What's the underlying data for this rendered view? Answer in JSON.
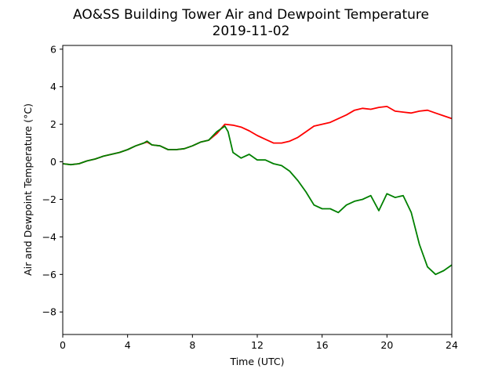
{
  "chart_data": {
    "type": "line",
    "title": "AO&SS Building Tower Air and Dewpoint Temperature",
    "subtitle": "2019-11-02",
    "xlabel": "Time (UTC)",
    "ylabel": "Air and Dewpoint Temperature (°C)",
    "xlim": [
      0,
      24
    ],
    "ylim": [
      -9.2,
      6.2
    ],
    "xticks": [
      0,
      4,
      8,
      12,
      16,
      20,
      24
    ],
    "yticks": [
      -8,
      -6,
      -4,
      -2,
      0,
      2,
      4,
      6
    ],
    "tick_labels_y": [
      "−8",
      "−6",
      "−4",
      "−2",
      "0",
      "2",
      "4",
      "6"
    ],
    "grid": false,
    "series": [
      {
        "color": "#ff0000",
        "x": [
          0,
          0.5,
          1,
          1.5,
          2,
          2.5,
          3,
          3.5,
          4,
          4.5,
          5,
          5.2,
          5.5,
          6,
          6.5,
          7,
          7.5,
          8,
          8.5,
          9,
          9.5,
          10,
          10.5,
          11,
          11.5,
          12,
          12.5,
          13,
          13.5,
          14,
          14.5,
          15,
          15.5,
          16,
          16.5,
          17,
          17.5,
          18,
          18.5,
          19,
          19.5,
          20,
          20.5,
          21,
          21.5,
          22,
          22.5,
          23,
          23.5,
          24
        ],
        "y": [
          -0.1,
          -0.15,
          -0.1,
          0.05,
          0.15,
          0.3,
          0.4,
          0.5,
          0.65,
          0.85,
          1.0,
          1.05,
          0.9,
          0.85,
          0.65,
          0.65,
          0.7,
          0.85,
          1.05,
          1.15,
          1.5,
          2.0,
          1.95,
          1.85,
          1.65,
          1.4,
          1.2,
          1.0,
          1.0,
          1.1,
          1.3,
          1.6,
          1.9,
          2.0,
          2.1,
          2.3,
          2.5,
          2.75,
          2.85,
          2.8,
          2.9,
          2.95,
          2.7,
          2.65,
          2.6,
          2.7,
          2.75,
          2.6,
          2.45,
          2.3
        ]
      },
      {
        "color": "#008000",
        "x": [
          0,
          0.5,
          1,
          1.5,
          2,
          2.5,
          3,
          3.5,
          4,
          4.5,
          5,
          5.2,
          5.5,
          6,
          6.5,
          7,
          7.5,
          8,
          8.5,
          9,
          9.5,
          10,
          10.2,
          10.5,
          11,
          11.5,
          12,
          12.5,
          13,
          13.5,
          14,
          14.5,
          15,
          15.5,
          16,
          16.5,
          17,
          17.5,
          18,
          18.5,
          19,
          19.5,
          20,
          20.5,
          21,
          21.5,
          22,
          22.5,
          23,
          23.5,
          24
        ],
        "y": [
          -0.1,
          -0.15,
          -0.1,
          0.05,
          0.15,
          0.3,
          0.4,
          0.5,
          0.65,
          0.85,
          1.0,
          1.1,
          0.9,
          0.85,
          0.65,
          0.65,
          0.7,
          0.85,
          1.05,
          1.15,
          1.6,
          1.9,
          1.6,
          0.5,
          0.2,
          0.4,
          0.1,
          0.1,
          -0.1,
          -0.2,
          -0.5,
          -1.0,
          -1.6,
          -2.3,
          -2.5,
          -2.5,
          -2.7,
          -2.3,
          -2.1,
          -2.0,
          -1.8,
          -2.6,
          -1.7,
          -1.9,
          -1.8,
          -2.7,
          -4.4,
          -5.6,
          -6.0,
          -5.8,
          -5.5
        ]
      }
    ]
  }
}
